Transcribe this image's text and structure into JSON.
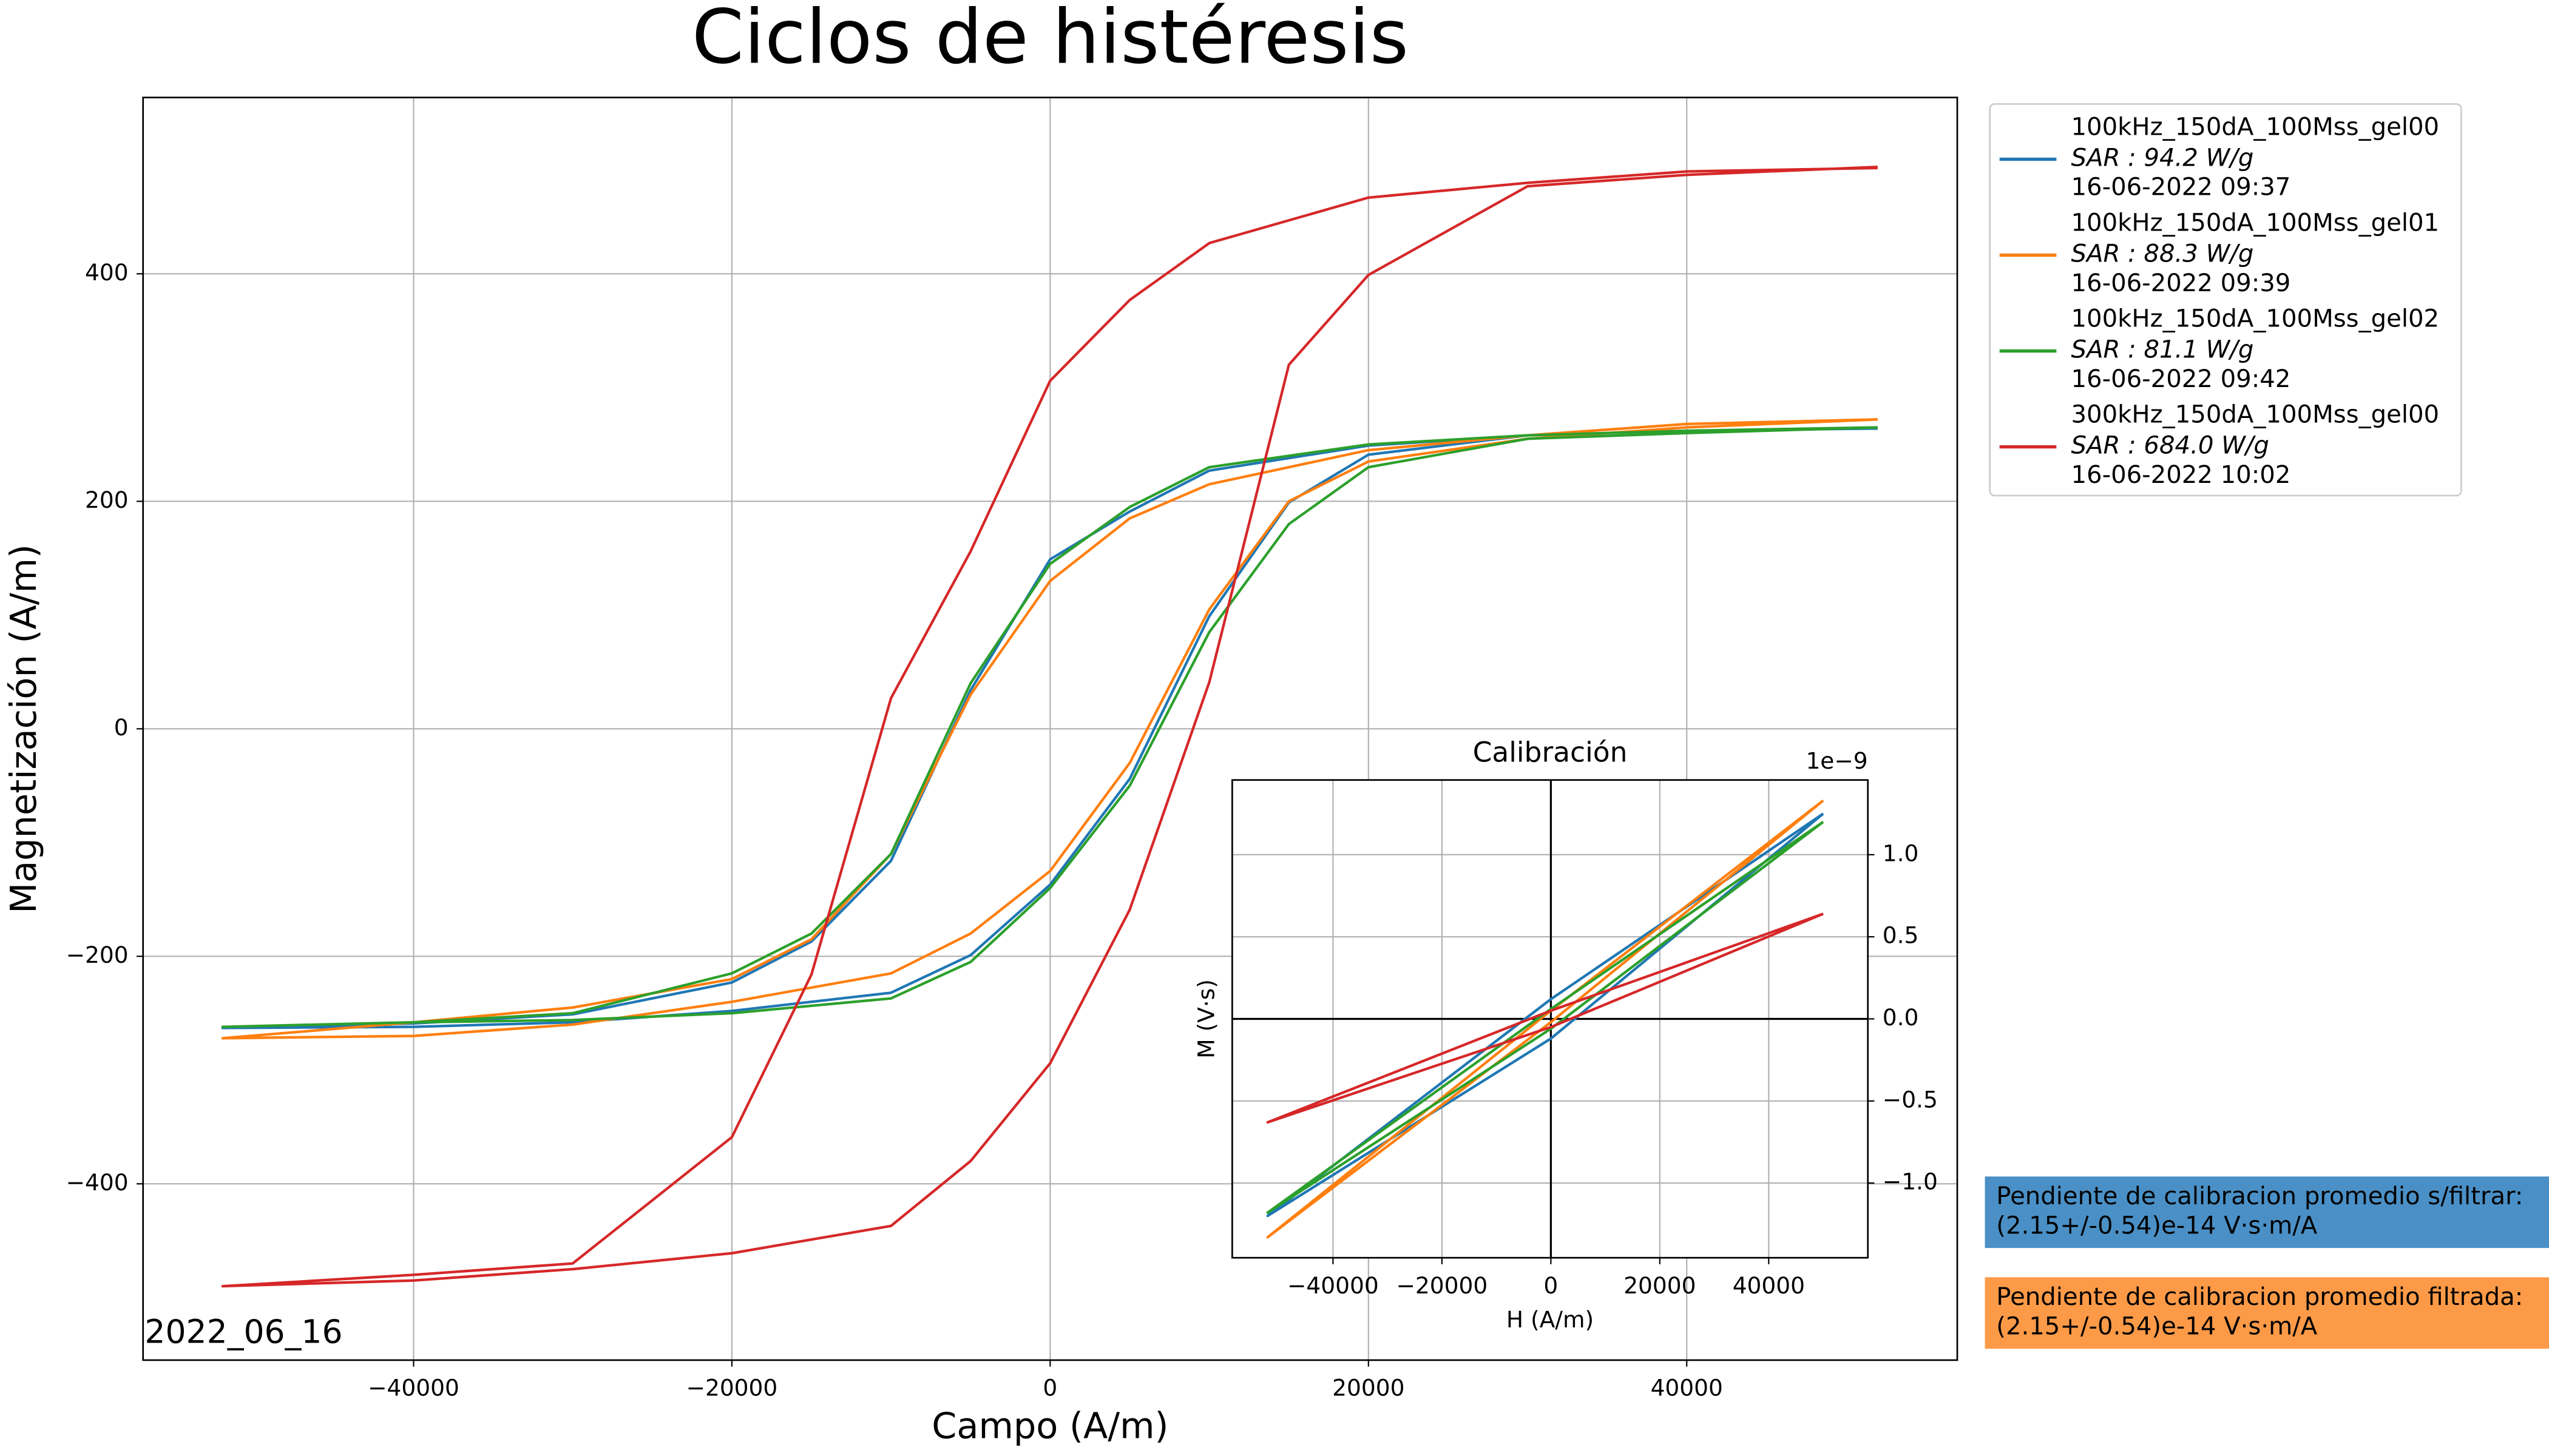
{
  "chart_data": [
    {
      "type": "line",
      "title": "Ciclos de histéresis",
      "xlabel": "Campo (A/m)",
      "ylabel": "Magnetización (A/m)",
      "x": [
        52000,
        40000,
        30000,
        20000,
        10000,
        5000,
        0,
        -5000,
        -10000,
        -15000,
        -20000,
        -30000,
        -40000,
        -52000,
        -40000,
        -30000,
        -20000,
        -10000,
        -5000,
        0,
        5000,
        10000,
        15000,
        20000,
        30000,
        40000,
        52000
      ],
      "xlim": [
        -57000,
        57000
      ],
      "xticks": [
        {
          "value": -40000,
          "label": "−40000"
        },
        {
          "value": -20000,
          "label": "−20000"
        },
        0,
        20000,
        40000
      ],
      "ylim": [
        -555,
        555
      ],
      "yticks": [
        {
          "value": -400,
          "label": "−400"
        },
        {
          "value": -200,
          "label": "−200"
        },
        0,
        200,
        400
      ],
      "grid": true,
      "legend": "outside right",
      "series": [
        {
          "name": "100kHz_150dA_100Mss_gel00",
          "sar": "SAR :  94.2 W/g",
          "date": "16-06-2022 09:37",
          "color": "#1f77b4",
          "values": [
            264,
            262,
            258,
            249,
            227,
            191,
            149,
            34,
            -116,
            -187,
            -223,
            -251,
            -259,
            -263,
            -262,
            -258,
            -248,
            -232,
            -199,
            -137,
            -44,
            99,
            199,
            241,
            258,
            262,
            264
          ]
        },
        {
          "name": "100kHz_150dA_100Mss_gel01",
          "sar": "SAR :  88.3 W/g",
          "date": "16-06-2022 09:39",
          "color": "#ff7f0e",
          "values": [
            272,
            268,
            258,
            245,
            215,
            185,
            130,
            30,
            -110,
            -185,
            -220,
            -245,
            -258,
            -272,
            -270,
            -260,
            -240,
            -215,
            -180,
            -125,
            -30,
            105,
            200,
            235,
            255,
            265,
            272
          ]
        },
        {
          "name": "100kHz_150dA_100Mss_gel02",
          "sar": "SAR :  81.1 W/g",
          "date": "16-06-2022 09:42",
          "color": "#2ca02c",
          "values": [
            265,
            262,
            258,
            250,
            230,
            195,
            145,
            40,
            -110,
            -180,
            -215,
            -250,
            -258,
            -262,
            -258,
            -256,
            -250,
            -237,
            -205,
            -140,
            -50,
            85,
            180,
            230,
            255,
            260,
            265
          ]
        },
        {
          "name": "300kHz_150dA_100Mss_gel00",
          "sar": "SAR :  684.0 W/g",
          "date": "16-06-2022 10:02",
          "color": "#d62728",
          "values": [
            493,
            490,
            480,
            467,
            427,
            377,
            306,
            156,
            27,
            -216,
            -359,
            -470,
            -480,
            -490,
            -485,
            -475,
            -461,
            -437,
            -380,
            -294,
            -159,
            41,
            320,
            399,
            477,
            487,
            494
          ]
        }
      ],
      "date_label": "2022_06_16",
      "notes": [
        {
          "lines": [
            "Pendiente de calibracion promedio s/filtrar:",
            " (2.15+/-0.54)e-14 V·s·m/A"
          ],
          "color": "#4a90c6"
        },
        {
          "lines": [
            "Pendiente de calibracion promedio filtrada:",
            " (2.15+/-0.54)e-14 V·s·m/A"
          ],
          "color": "#fd9a47"
        }
      ]
    },
    {
      "type": "line",
      "title": "Calibración",
      "xlabel": "H (A/m)",
      "ylabel": "M (V·s)",
      "offset_label": "1e−9",
      "x": [
        50000,
        0,
        -52000,
        0,
        50000
      ],
      "xlim": [
        -58500,
        58200
      ],
      "xticks": [
        {
          "value": -40000,
          "label": "−40000"
        },
        {
          "value": -20000,
          "label": "−20000"
        },
        0,
        20000,
        40000
      ],
      "ylim": [
        -1.455,
        1.455
      ],
      "yticks": [
        {
          "value": -1,
          "label": "−1.0"
        },
        {
          "value": -0.5,
          "label": "−0.5"
        },
        {
          "value": 0,
          "label": "0.0"
        },
        {
          "value": 0.5,
          "label": "0.5"
        },
        {
          "value": 1,
          "label": "1.0"
        }
      ],
      "grid": true,
      "zero_lines": true,
      "series": [
        {
          "color": "#1f77b4",
          "values": [
            1.25,
            0.12,
            -1.2,
            -0.12,
            1.25
          ]
        },
        {
          "color": "#ff7f0e",
          "values": [
            1.33,
            0.05,
            -1.33,
            -0.02,
            1.33
          ]
        },
        {
          "color": "#2ca02c",
          "values": [
            1.2,
            0.06,
            -1.18,
            -0.06,
            1.2
          ]
        },
        {
          "color": "#d62728",
          "values": [
            0.64,
            0.05,
            -0.63,
            -0.05,
            0.64
          ]
        }
      ]
    }
  ]
}
